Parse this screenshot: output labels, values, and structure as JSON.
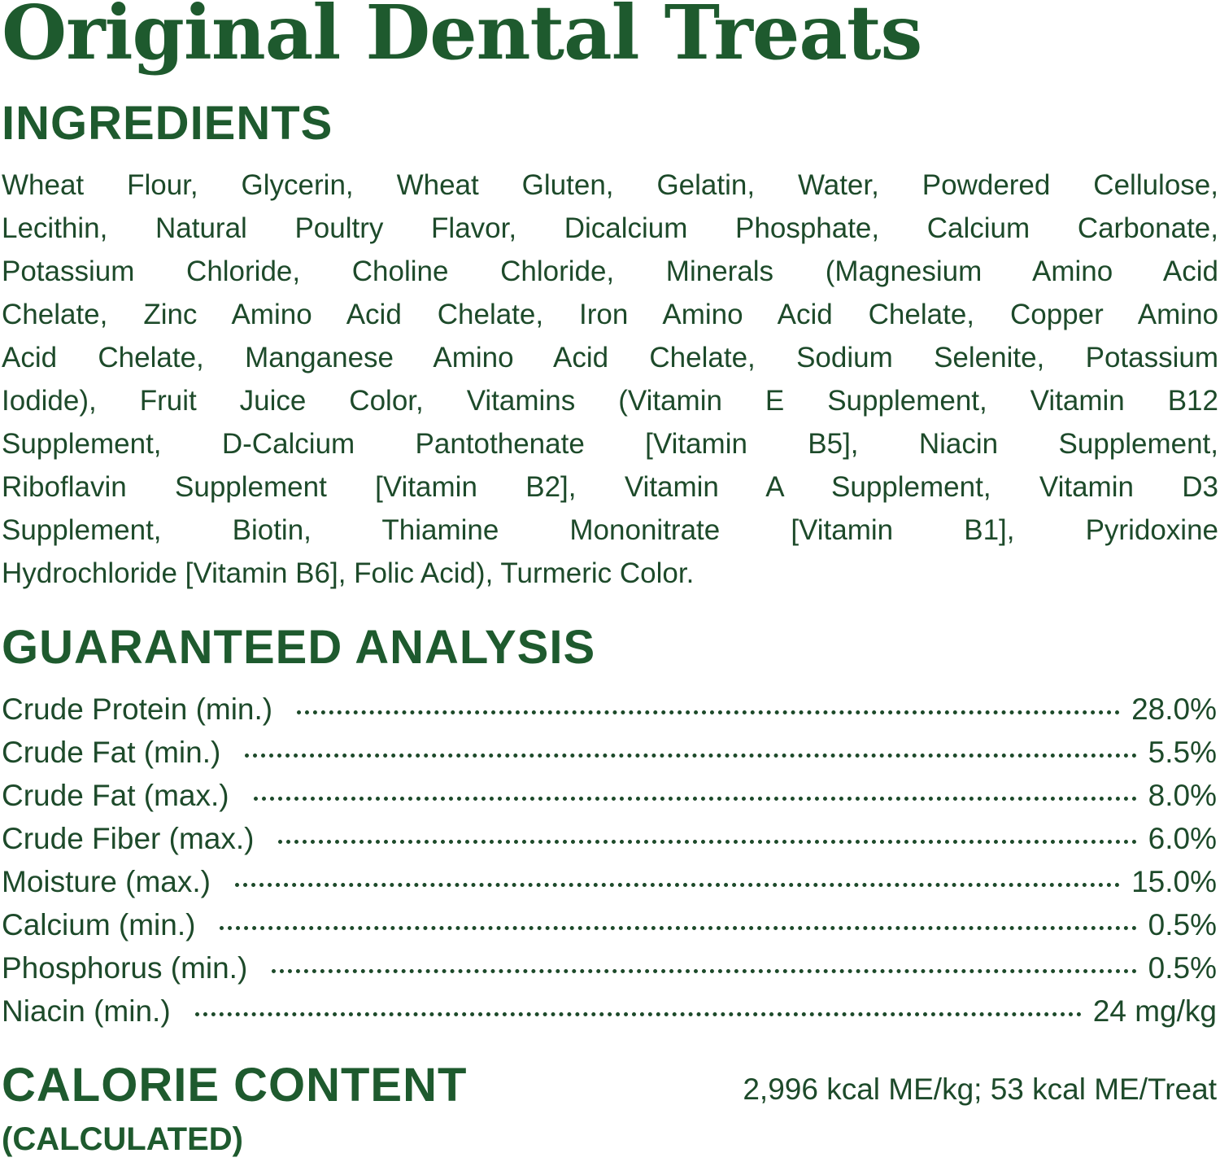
{
  "title": "Original Dental Treats",
  "colors": {
    "heading": "#1e5a2e",
    "text": "#1d4a2a",
    "background": "#ffffff"
  },
  "ingredients": {
    "heading": "INGREDIENTS",
    "lines": [
      "Wheat Flour, Glycerin, Wheat Gluten, Gelatin, Water, Powdered Cellulose,",
      "Lecithin, Natural Poultry Flavor, Dicalcium Phosphate, Calcium Carbonate,",
      "Potassium Chloride, Choline Chloride, Minerals (Magnesium Amino Acid",
      "Chelate, Zinc Amino Acid Chelate, Iron Amino Acid Chelate, Copper Amino",
      "Acid Chelate, Manganese Amino Acid Chelate, Sodium Selenite, Potassium",
      "Iodide), Fruit Juice Color, Vitamins (Vitamin E Supplement, Vitamin B12",
      "Supplement, D-Calcium Pantothenate [Vitamin B5], Niacin Supplement,",
      "Riboflavin Supplement [Vitamin B2], Vitamin A Supplement, Vitamin D3",
      "Supplement, Biotin, Thiamine Mononitrate [Vitamin B1], Pyridoxine",
      "Hydrochloride [Vitamin B6], Folic Acid), Turmeric Color."
    ]
  },
  "analysis": {
    "heading": "GUARANTEED ANALYSIS",
    "rows": [
      {
        "label": "Crude Protein (min.)",
        "value": "28.0%"
      },
      {
        "label": "Crude Fat (min.)",
        "value": "5.5%"
      },
      {
        "label": "Crude Fat (max.)",
        "value": "8.0%"
      },
      {
        "label": "Crude Fiber (max.)",
        "value": "6.0%"
      },
      {
        "label": "Moisture (max.)",
        "value": "15.0%"
      },
      {
        "label": "Calcium (min.)",
        "value": "0.5%"
      },
      {
        "label": "Phosphorus (min.)",
        "value": "0.5%"
      },
      {
        "label": "Niacin (min.)",
        "value": "24 mg/kg"
      }
    ]
  },
  "calorie": {
    "heading": "CALORIE CONTENT",
    "subheading": "(CALCULATED)",
    "value": "2,996 kcal ME/kg; 53 kcal ME/Treat"
  }
}
